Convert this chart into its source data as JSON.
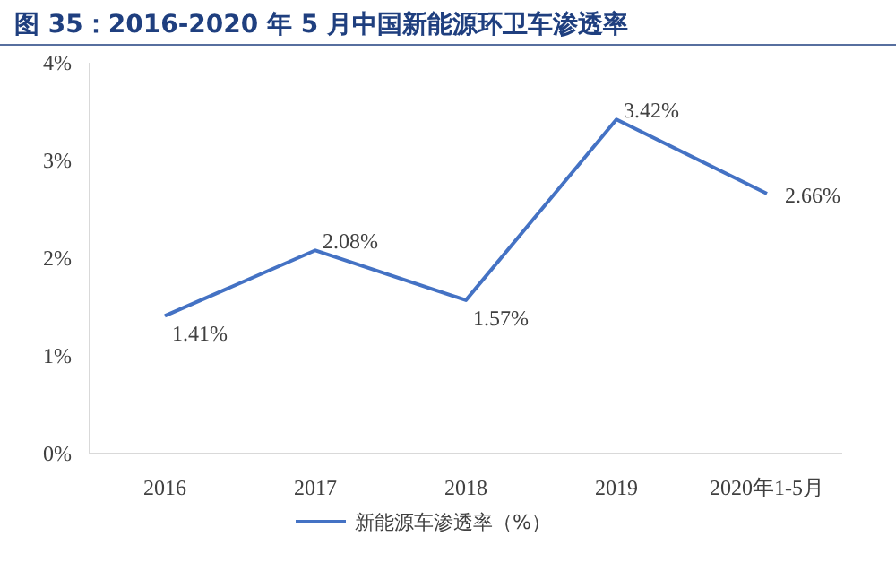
{
  "chart_data": {
    "type": "line",
    "title": "图 35：2016-2020 年 5 月中国新能源环卫车渗透率",
    "categories": [
      "2016",
      "2017",
      "2018",
      "2019",
      "2020年1-5月"
    ],
    "series": [
      {
        "name": "新能源车渗透率（%）",
        "color": "#4472c4",
        "values": [
          1.41,
          2.08,
          1.57,
          3.42,
          2.66
        ],
        "value_labels": [
          "1.41%",
          "2.08%",
          "1.57%",
          "3.42%",
          "2.66%"
        ]
      }
    ],
    "ylim": [
      0,
      4
    ],
    "yticks": [
      {
        "value": 0,
        "label": "0%"
      },
      {
        "value": 1,
        "label": "1%"
      },
      {
        "value": 2,
        "label": "2%"
      },
      {
        "value": 3,
        "label": "3%"
      },
      {
        "value": 4,
        "label": "4%"
      }
    ],
    "legend": "bottom"
  }
}
